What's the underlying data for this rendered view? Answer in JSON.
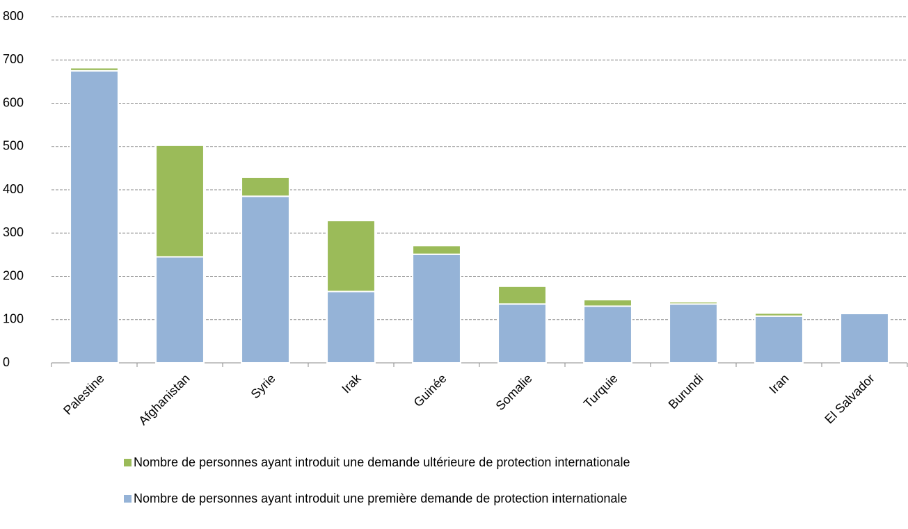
{
  "chart_data": {
    "type": "stacked-bar",
    "categories": [
      "Palestine",
      "Afghanistan",
      "Syrie",
      "Irak",
      "Guinée",
      "Somalie",
      "Turquie",
      "Burundi",
      "Iran",
      "El Salvador"
    ],
    "series": [
      {
        "name": "Nombre de personnes ayant introduit une première demande de protection internationale",
        "color": "#95b3d7",
        "values": [
          675,
          245,
          385,
          165,
          251,
          136,
          131,
          136,
          108,
          114
        ]
      },
      {
        "name": "Nombre de personnes ayant introduit une demande ultérieure de protection internationale",
        "color": "#9bbb59",
        "values": [
          7,
          258,
          44,
          164,
          20,
          41,
          15,
          5,
          7,
          0
        ]
      }
    ],
    "ylim": [
      0,
      800
    ],
    "yticks": [
      0,
      100,
      200,
      300,
      400,
      500,
      600,
      700,
      800
    ],
    "grid": true
  }
}
